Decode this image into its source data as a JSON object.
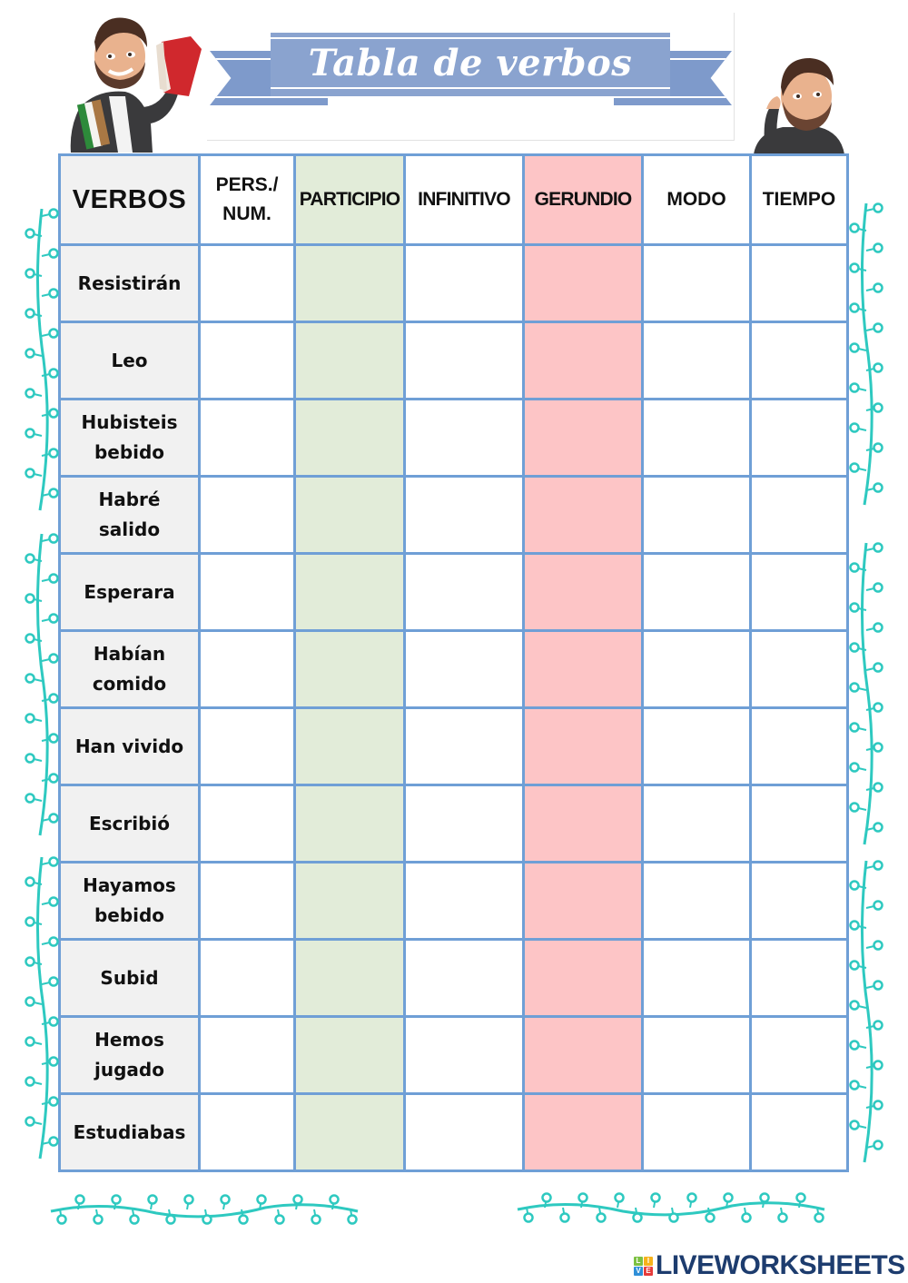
{
  "header": {
    "title": "Tabla de verbos"
  },
  "table": {
    "columns": [
      {
        "key": "verbos",
        "label": "VERBOS",
        "fill": "#f1f1f1"
      },
      {
        "key": "pers_num",
        "label_line1": "PERS./",
        "label_line2": "NUM.",
        "fill": "#ffffff"
      },
      {
        "key": "participio",
        "label": "PARTICIPIO",
        "fill": "#e2ecd9"
      },
      {
        "key": "infinitivo",
        "label": "INFINITIVO",
        "fill": "#ffffff"
      },
      {
        "key": "gerundio",
        "label": "GERUNDIO",
        "fill": "#fdc5c6"
      },
      {
        "key": "modo",
        "label": "MODO",
        "fill": "#ffffff"
      },
      {
        "key": "tiempo",
        "label": "TIEMPO",
        "fill": "#ffffff"
      }
    ],
    "rows": [
      {
        "verb_line1": "Resistirán",
        "verb_line2": ""
      },
      {
        "verb_line1": "Leo",
        "verb_line2": ""
      },
      {
        "verb_line1": "Hubisteis",
        "verb_line2": "bebido"
      },
      {
        "verb_line1": "Habré",
        "verb_line2": "salido"
      },
      {
        "verb_line1": "Esperara",
        "verb_line2": ""
      },
      {
        "verb_line1": "Habían",
        "verb_line2": "comido"
      },
      {
        "verb_line1": "Han vivido",
        "verb_line2": ""
      },
      {
        "verb_line1": "Escribió",
        "verb_line2": ""
      },
      {
        "verb_line1": "Hayamos",
        "verb_line2": "bebido"
      },
      {
        "verb_line1": "Subid",
        "verb_line2": ""
      },
      {
        "verb_line1": "Hemos",
        "verb_line2": "jugado"
      },
      {
        "verb_line1": "Estudiabas",
        "verb_line2": ""
      }
    ],
    "border_color": "#6f9fd6"
  },
  "decor": {
    "vine_color": "#2ec9c0",
    "banner_color": "#8aa3cf"
  },
  "footer": {
    "logo_letters": [
      "L",
      "I",
      "V",
      "E"
    ],
    "logo_text": "LIVEWORKSHEETS"
  }
}
